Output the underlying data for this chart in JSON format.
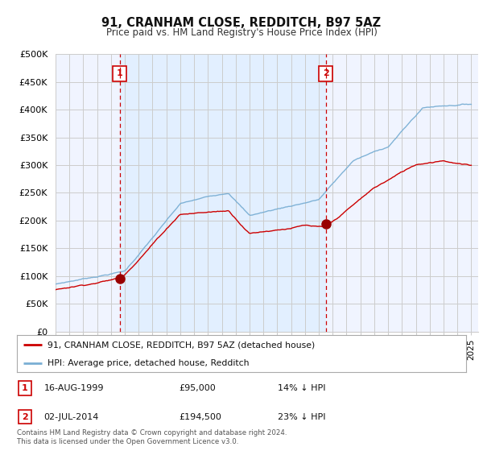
{
  "title": "91, CRANHAM CLOSE, REDDITCH, B97 5AZ",
  "subtitle": "Price paid vs. HM Land Registry's House Price Index (HPI)",
  "ylim": [
    0,
    500000
  ],
  "xlim_start": 1995.0,
  "xlim_end": 2025.5,
  "sale1_date": 1999.62,
  "sale1_price": 95000,
  "sale2_date": 2014.5,
  "sale2_price": 194500,
  "legend_line1": "91, CRANHAM CLOSE, REDDITCH, B97 5AZ (detached house)",
  "legend_line2": "HPI: Average price, detached house, Redditch",
  "footnote": "Contains HM Land Registry data © Crown copyright and database right 2024.\nThis data is licensed under the Open Government Licence v3.0.",
  "line_color_red": "#cc0000",
  "line_color_blue": "#7aafd4",
  "fill_color_between_vlines": "#ddeeff",
  "marker_color_red": "#990000",
  "grid_color": "#cccccc",
  "background_color": "#ffffff",
  "chart_bg_color": "#f0f4ff",
  "vline_color": "#cc0000"
}
